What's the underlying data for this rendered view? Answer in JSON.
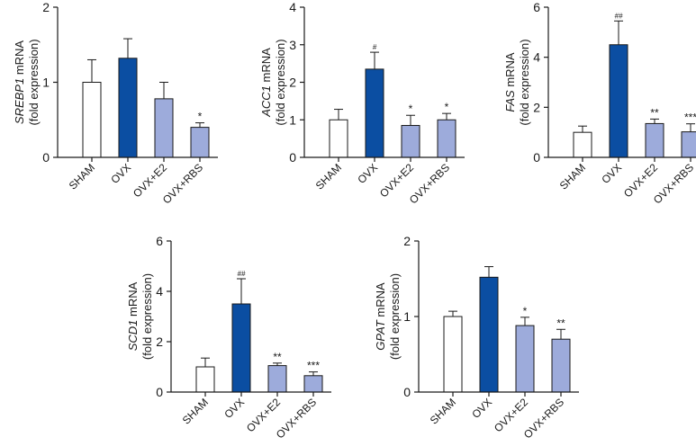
{
  "styles": {
    "sham": "#ffffff",
    "ovx": "#0b4ea2",
    "treated": "#9dabdb",
    "stroke": "#1a1a1a"
  },
  "chart_data": [
    {
      "type": "bar",
      "gene": "SREBP1",
      "ylabel_suffix": " mRNA",
      "ylabel_line2": "(fold expression)",
      "categories": [
        "SHAM",
        "OVX",
        "OVX+E2",
        "OVX+RBS"
      ],
      "values": [
        1.0,
        1.32,
        0.78,
        0.4
      ],
      "errors": [
        0.3,
        0.26,
        0.22,
        0.06
      ],
      "annotations": [
        "",
        "",
        "",
        "*"
      ],
      "ylim": [
        0,
        2
      ],
      "yticks": [
        0,
        1,
        2
      ]
    },
    {
      "type": "bar",
      "gene": "ACC1",
      "ylabel_suffix": " mRNA",
      "ylabel_line2": "(fold expression)",
      "categories": [
        "SHAM",
        "OVX",
        "OVX+E2",
        "OVX+RBS"
      ],
      "values": [
        1.0,
        2.35,
        0.85,
        1.0
      ],
      "errors": [
        0.28,
        0.45,
        0.27,
        0.17
      ],
      "annotations": [
        "",
        "#",
        "*",
        "*"
      ],
      "ylim": [
        0,
        4
      ],
      "yticks": [
        0,
        1,
        2,
        3,
        4
      ]
    },
    {
      "type": "bar",
      "gene": "FAS",
      "ylabel_suffix": " mRNA",
      "ylabel_line2": "(fold expression)",
      "categories": [
        "SHAM",
        "OVX",
        "OVX+E2",
        "OVX+RBS"
      ],
      "values": [
        1.0,
        4.5,
        1.35,
        1.02
      ],
      "errors": [
        0.25,
        0.95,
        0.18,
        0.32
      ],
      "annotations": [
        "",
        "##",
        "**",
        "***"
      ],
      "ylim": [
        0,
        6
      ],
      "yticks": [
        0,
        2,
        4,
        6
      ]
    },
    {
      "type": "bar",
      "gene": "SCD1",
      "ylabel_suffix": " mRNA",
      "ylabel_line2": "(fold expression)",
      "categories": [
        "SHAM",
        "OVX",
        "OVX+E2",
        "OVX+RBS"
      ],
      "values": [
        1.0,
        3.5,
        1.05,
        0.65
      ],
      "errors": [
        0.35,
        1.0,
        0.1,
        0.15
      ],
      "annotations": [
        "",
        "##",
        "**",
        "***"
      ],
      "ylim": [
        0,
        6
      ],
      "yticks": [
        0,
        2,
        4,
        6
      ]
    },
    {
      "type": "bar",
      "gene": "GPAT",
      "ylabel_suffix": " mRNA",
      "ylabel_line2": "(fold expression)",
      "categories": [
        "SHAM",
        "OVX",
        "OVX+E2",
        "OVX+RBS"
      ],
      "values": [
        1.0,
        1.52,
        0.88,
        0.7
      ],
      "errors": [
        0.07,
        0.14,
        0.11,
        0.13
      ],
      "annotations": [
        "",
        "",
        "*",
        "**"
      ],
      "ylim": [
        0,
        2
      ],
      "yticks": [
        0,
        1,
        2
      ]
    }
  ]
}
